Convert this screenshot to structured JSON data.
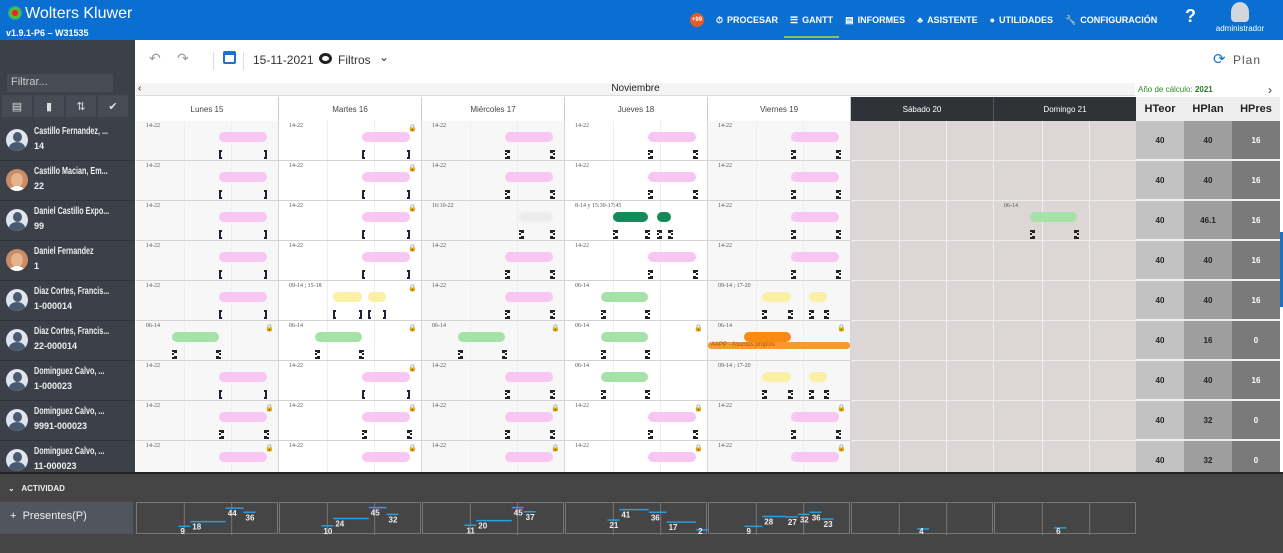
{
  "header": {
    "brand": "Wolters Kluwer",
    "version": "v1.9.1-P6 – W31535",
    "badge": "+99",
    "nav": [
      {
        "label": "PROCESAR",
        "icon": "⏱"
      },
      {
        "label": "GANTT",
        "icon": "☰",
        "active": true
      },
      {
        "label": "INFORMES",
        "icon": "▤"
      },
      {
        "label": "ASISTENTE",
        "icon": "♣"
      },
      {
        "label": "UTILIDADES",
        "icon": "●"
      },
      {
        "label": "CONFIGURACIÓN",
        "icon": "🔧"
      }
    ],
    "help": "?",
    "user": "administrador"
  },
  "sidebar": {
    "filter_placeholder": "Filtrar...",
    "buttons": [
      "▤",
      "▮",
      "⇅",
      "✔"
    ]
  },
  "toolbar": {
    "undo": "↶",
    "redo": "↷",
    "date": "15-11-2021",
    "filters": "Filtros",
    "filters_chevron": "⌄",
    "plan": "Plan",
    "plan_icon": "⟳"
  },
  "calendar": {
    "month": "Noviembre",
    "prev": "‹",
    "next": "›",
    "calc_label": "Año de cálculo:",
    "calc_year": "2021",
    "days": [
      "Lunes 15",
      "Martes 16",
      "Miércoles 17",
      "Jueves 18",
      "Viernes 19",
      "Sábado 20",
      "Domingo 21"
    ],
    "hours_headers": [
      "HTeor",
      "HPlan",
      "HPres"
    ]
  },
  "colors": {
    "p": "#f7c6f2",
    "g": "#a6e2a8",
    "dg": "#148a58",
    "y": "#fbf0a6",
    "x": "#ececec",
    "o": "#f98a12"
  },
  "employees": [
    {
      "name": "Castillo Fernandez, ...",
      "id": "14",
      "photo": false,
      "h": [
        "40",
        "40",
        "16"
      ],
      "cells": [
        {
          "l": "14-22",
          "b": [
            [
              "p",
              14,
              22
            ]
          ],
          "s": "solid"
        },
        {
          "l": "14-22",
          "b": [
            [
              "p",
              14,
              22
            ]
          ],
          "s": "solid",
          "lock": 1
        },
        {
          "l": "14-22",
          "b": [
            [
              "p",
              14,
              22
            ]
          ]
        },
        {
          "l": "14-22",
          "b": [
            [
              "p",
              14,
              22
            ]
          ]
        },
        {
          "l": "14-22",
          "b": [
            [
              "p",
              14,
              22
            ]
          ]
        },
        null,
        null
      ]
    },
    {
      "name": "Castillo Macian, Em...",
      "id": "22",
      "photo": true,
      "h": [
        "40",
        "40",
        "16"
      ],
      "cells": [
        {
          "l": "14-22",
          "b": [
            [
              "p",
              14,
              22
            ]
          ],
          "s": "solid"
        },
        {
          "l": "14-22",
          "b": [
            [
              "p",
              14,
              22
            ]
          ],
          "s": "solid",
          "lock": 1
        },
        {
          "l": "14-22",
          "b": [
            [
              "p",
              14,
              22
            ]
          ]
        },
        {
          "l": "14-22",
          "b": [
            [
              "p",
              14,
              22
            ]
          ]
        },
        {
          "l": "14-22",
          "b": [
            [
              "p",
              14,
              22
            ]
          ]
        },
        null,
        null
      ]
    },
    {
      "name": "Daniel Castillo Expo...",
      "id": "99",
      "photo": false,
      "h": [
        "40",
        "46.1",
        "16"
      ],
      "cells": [
        {
          "l": "14-22",
          "b": [
            [
              "p",
              14,
              22
            ]
          ],
          "s": "solid"
        },
        {
          "l": "14-22",
          "b": [
            [
              "p",
              14,
              22
            ]
          ],
          "s": "solid",
          "lock": 1
        },
        {
          "l": "16:10-22",
          "b": [
            [
              "x",
              16.2,
              22
            ]
          ]
        },
        {
          "l": "8-14 y 15:30-17:45",
          "b": [
            [
              "dg",
              8,
              14
            ],
            [
              "dg",
              15.5,
              17.75
            ]
          ]
        },
        {
          "l": "14-22",
          "b": [
            [
              "p",
              14,
              22
            ]
          ]
        },
        null,
        {
          "l": "06-14",
          "b": [
            [
              "g",
              6,
              14
            ]
          ]
        }
      ]
    },
    {
      "name": "Daniel Fernandez",
      "id": "1",
      "photo": true,
      "h": [
        "40",
        "40",
        "16"
      ],
      "cells": [
        {
          "l": "14-22",
          "b": [
            [
              "p",
              14,
              22
            ]
          ],
          "s": "solid"
        },
        {
          "l": "14-22",
          "b": [
            [
              "p",
              14,
              22
            ]
          ],
          "s": "solid",
          "lock": 1
        },
        {
          "l": "14-22",
          "b": [
            [
              "p",
              14,
              22
            ]
          ]
        },
        {
          "l": "14-22",
          "b": [
            [
              "p",
              14,
              22
            ]
          ]
        },
        {
          "l": "14-22",
          "b": [
            [
              "p",
              14,
              22
            ]
          ]
        },
        null,
        null
      ]
    },
    {
      "name": "Diaz Cortes, Francis...",
      "id": "1-000014",
      "photo": false,
      "h": [
        "40",
        "40",
        "16"
      ],
      "cells": [
        {
          "l": "14-22",
          "b": [
            [
              "p",
              14,
              22
            ]
          ],
          "s": "solid"
        },
        {
          "l": "09-14 ; 15-18",
          "b": [
            [
              "y",
              9,
              14
            ],
            [
              "y",
              15,
              18
            ]
          ],
          "s": "solid",
          "lock": 1
        },
        {
          "l": "14-22",
          "b": [
            [
              "p",
              14,
              22
            ]
          ]
        },
        {
          "l": "06-14",
          "b": [
            [
              "g",
              6,
              14
            ]
          ]
        },
        {
          "l": "09-14 ; 17-20",
          "b": [
            [
              "y",
              9,
              14
            ],
            [
              "y",
              17,
              20
            ]
          ]
        },
        null,
        null
      ]
    },
    {
      "name": "Diaz Cortes, Francis...",
      "id": "22-000014",
      "photo": false,
      "h": [
        "40",
        "16",
        "0"
      ],
      "cells": [
        {
          "l": "06-14",
          "b": [
            [
              "g",
              6,
              14
            ]
          ],
          "lock": 1
        },
        {
          "l": "06-14",
          "b": [
            [
              "g",
              6,
              14
            ]
          ],
          "lock": 1
        },
        {
          "l": "06-14",
          "b": [
            [
              "g",
              6,
              14
            ]
          ],
          "lock": 1
        },
        {
          "l": "06-14",
          "b": [
            [
              "g",
              6,
              14
            ]
          ],
          "lock": 1
        },
        {
          "l": "06-14",
          "b": [
            [
              "o",
              6,
              14
            ]
          ],
          "lock": 1,
          "absence": "AAPP - Asuntos propios"
        },
        null,
        null
      ]
    },
    {
      "name": "Dominguez Calvo, ...",
      "id": "1-000023",
      "photo": false,
      "h": [
        "40",
        "40",
        "16"
      ],
      "cells": [
        {
          "l": "14-22",
          "b": [
            [
              "p",
              14,
              22
            ]
          ],
          "s": "solid"
        },
        {
          "l": "14-22",
          "b": [
            [
              "p",
              14,
              22
            ]
          ],
          "s": "solid",
          "lock": 1
        },
        {
          "l": "14-22",
          "b": [
            [
              "p",
              14,
              22
            ]
          ]
        },
        {
          "l": "06-14",
          "b": [
            [
              "g",
              6,
              14
            ]
          ]
        },
        {
          "l": "09-14 ; 17-20",
          "b": [
            [
              "y",
              9,
              14
            ],
            [
              "y",
              17,
              20
            ]
          ]
        },
        null,
        null
      ]
    },
    {
      "name": "Dominguez Calvo, ...",
      "id": "9991-000023",
      "photo": false,
      "h": [
        "40",
        "32",
        "0"
      ],
      "cells": [
        {
          "l": "14-22",
          "b": [
            [
              "p",
              14,
              22
            ]
          ],
          "lock": 1
        },
        {
          "l": "14-22",
          "b": [
            [
              "p",
              14,
              22
            ]
          ],
          "lock": 1
        },
        {
          "l": "14-22",
          "b": [
            [
              "p",
              14,
              22
            ]
          ],
          "lock": 1
        },
        {
          "l": "14-22",
          "b": [
            [
              "p",
              14,
              22
            ]
          ],
          "lock": 1
        },
        {
          "l": "14-22",
          "b": [
            [
              "p",
              14,
              22
            ]
          ],
          "lock": 1
        },
        null,
        null
      ]
    },
    {
      "name": "Dominguez Calvo, ...",
      "id": "11-000023",
      "photo": false,
      "h": [
        "40",
        "32",
        "0"
      ],
      "cells": [
        {
          "l": "14-22",
          "b": [
            [
              "p",
              14,
              22
            ]
          ],
          "lock": 1,
          "nob": 1
        },
        {
          "l": "14-22",
          "b": [
            [
              "p",
              14,
              22
            ]
          ],
          "lock": 1,
          "nob": 1
        },
        {
          "l": "14-22",
          "b": [
            [
              "p",
              14,
              22
            ]
          ],
          "lock": 1,
          "nob": 1
        },
        {
          "l": "14-22",
          "b": [
            [
              "p",
              14,
              22
            ]
          ],
          "lock": 1,
          "nob": 1
        },
        {
          "l": "14-22",
          "b": [
            [
              "p",
              14,
              22
            ]
          ],
          "lock": 1,
          "nob": 1
        },
        null,
        null
      ]
    }
  ],
  "activity": {
    "section": "ACTIVIDAD",
    "row_label": "Presentes(P)",
    "expand": "+",
    "collapse": "⌄",
    "chart_data": {
      "type": "line",
      "y_range": [
        0,
        50
      ],
      "days": [
        {
          "points": [
            [
              7,
              9
            ],
            [
              9,
              18
            ],
            [
              15,
              44
            ],
            [
              18,
              36
            ]
          ]
        },
        {
          "points": [
            [
              7,
              10
            ],
            [
              9,
              24
            ],
            [
              15,
              45
            ],
            [
              18,
              32
            ]
          ]
        },
        {
          "points": [
            [
              7,
              11
            ],
            [
              9,
              20
            ],
            [
              15,
              45
            ],
            [
              17,
              37
            ]
          ]
        },
        {
          "points": [
            [
              7,
              21
            ],
            [
              9,
              41
            ],
            [
              14,
              36
            ],
            [
              17,
              17
            ],
            [
              22,
              2
            ]
          ]
        },
        {
          "points": [
            [
              6,
              9
            ],
            [
              9,
              28
            ],
            [
              13,
              27
            ],
            [
              15,
              32
            ],
            [
              17,
              36
            ],
            [
              19,
              23
            ]
          ]
        },
        {
          "points": [
            [
              11,
              4
            ]
          ]
        },
        {
          "points": [
            [
              10,
              6
            ]
          ]
        }
      ]
    }
  }
}
